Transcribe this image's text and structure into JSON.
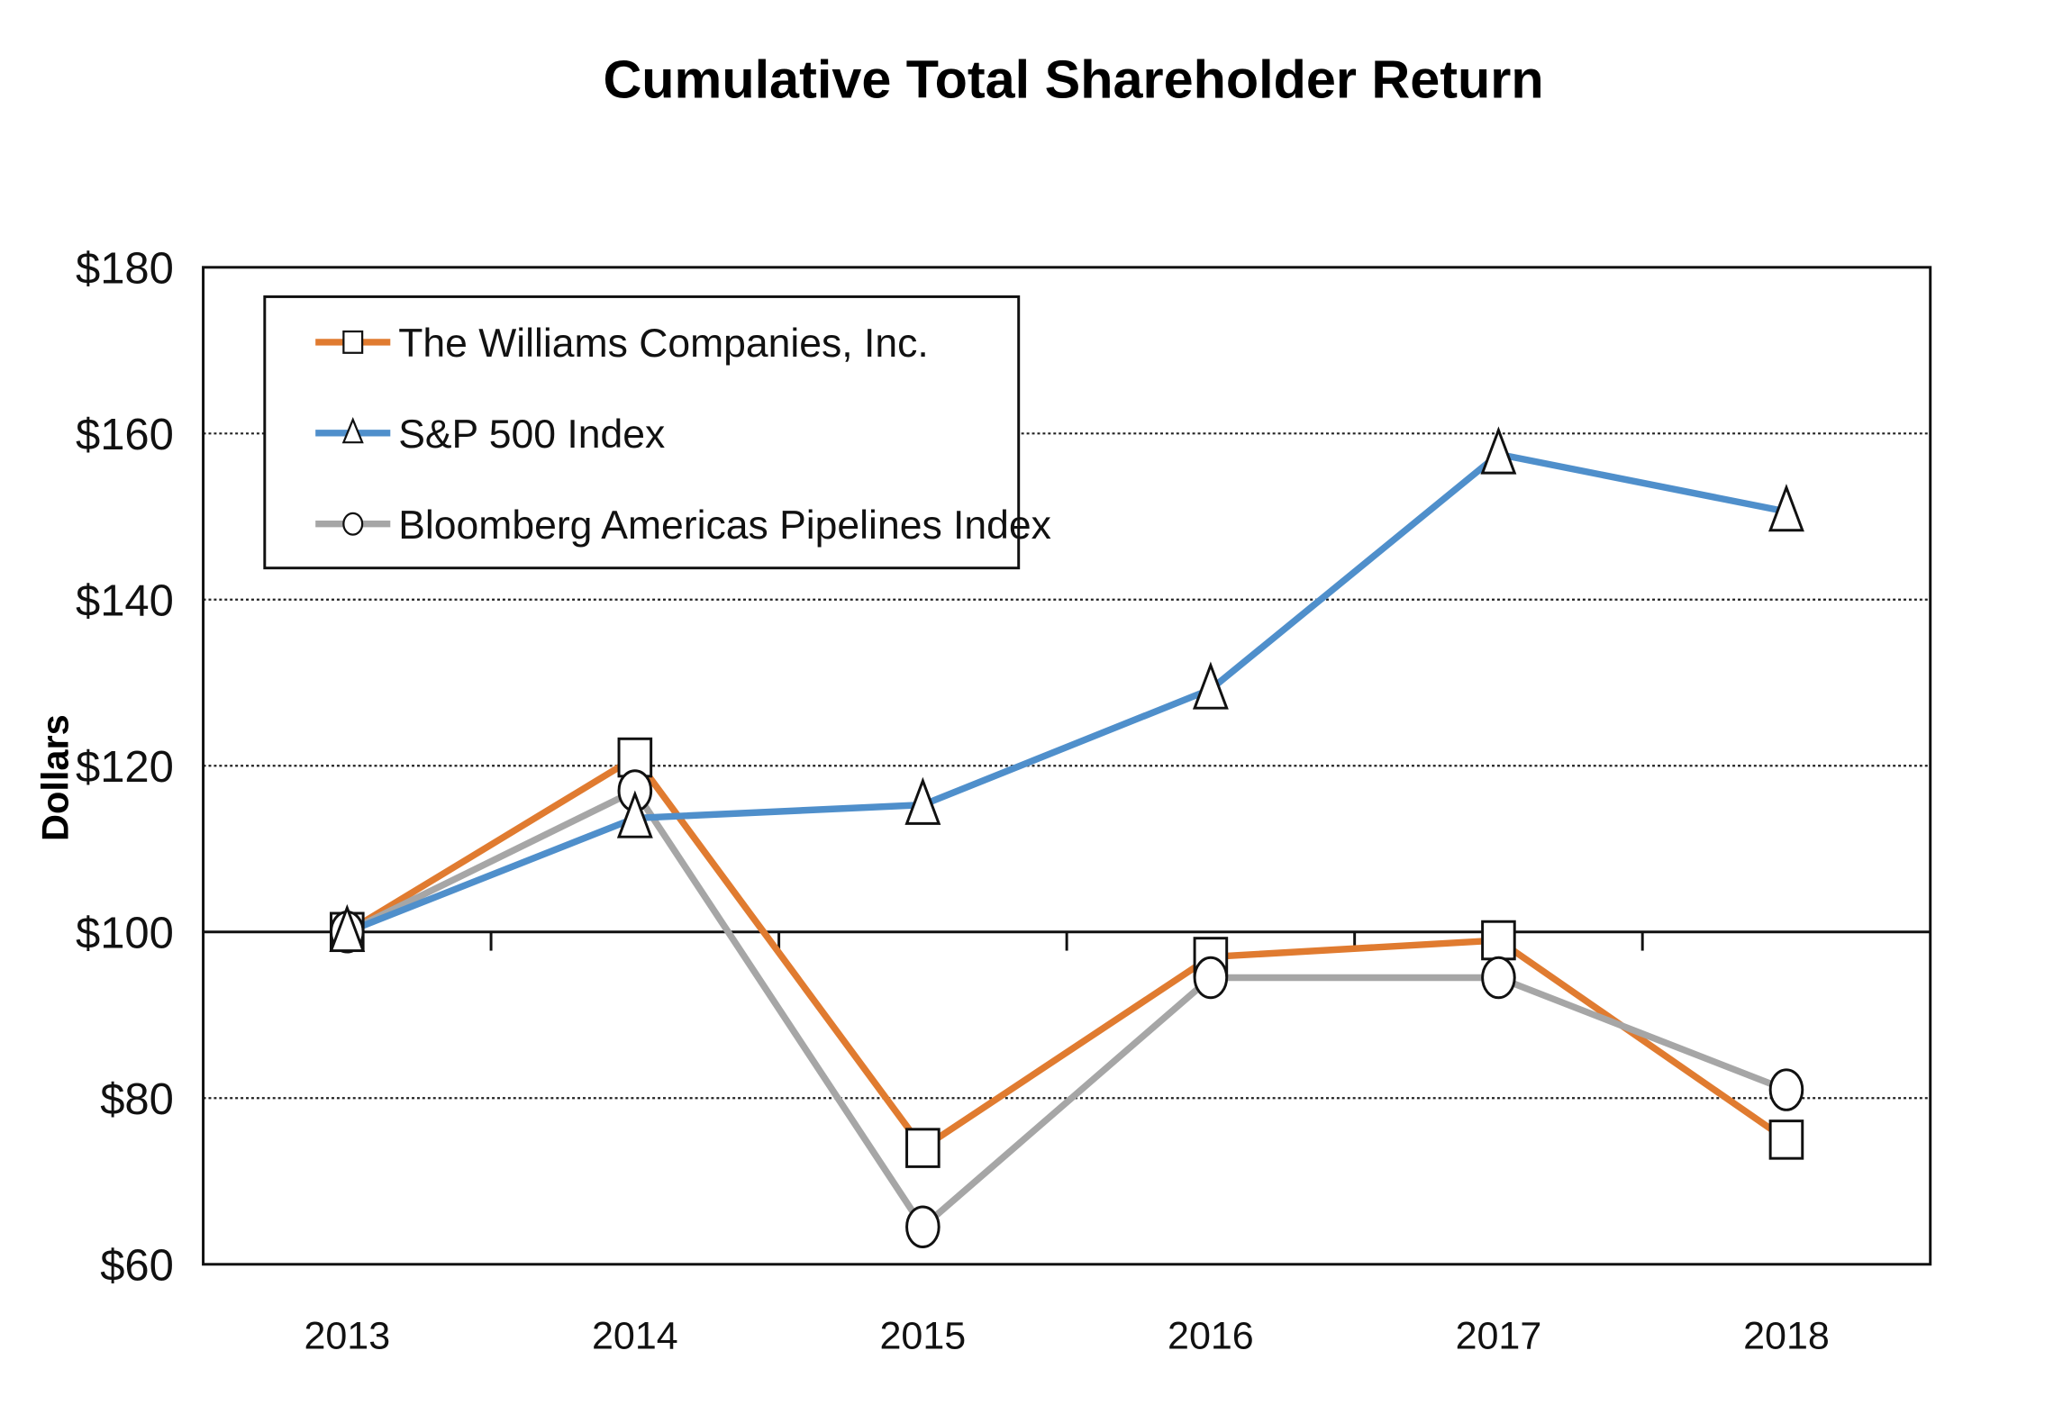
{
  "chart_data": {
    "type": "line",
    "title": "Cumulative  Total Shareholder Return",
    "xlabel": "",
    "ylabel": "Dollars",
    "categories": [
      "2013",
      "2014",
      "2015",
      "2016",
      "2017",
      "2018"
    ],
    "ylim": [
      60,
      180
    ],
    "yticks": [
      60,
      80,
      100,
      120,
      140,
      160,
      180
    ],
    "ytick_labels": [
      "$60",
      "$80",
      "$100",
      "$120",
      "$140",
      "$160",
      "$180"
    ],
    "x_axis_crosses_at": 100,
    "grid": "horizontal dotted",
    "legend_placement": "top-left",
    "series": [
      {
        "name": "The Williams Companies, Inc.",
        "color": "#E07B30",
        "marker": "square",
        "values": [
          100,
          121,
          74,
          97,
          99,
          75
        ]
      },
      {
        "name": "S&P 500 Index",
        "color": "#4F8FCB",
        "marker": "triangle",
        "values": [
          100,
          113.7,
          115.3,
          129.2,
          157.5,
          150.6
        ]
      },
      {
        "name": "Bloomberg Americas Pipelines Index",
        "color": "#A6A6A6",
        "marker": "circle",
        "values": [
          100,
          117,
          64.5,
          94.5,
          94.5,
          81
        ]
      }
    ]
  }
}
